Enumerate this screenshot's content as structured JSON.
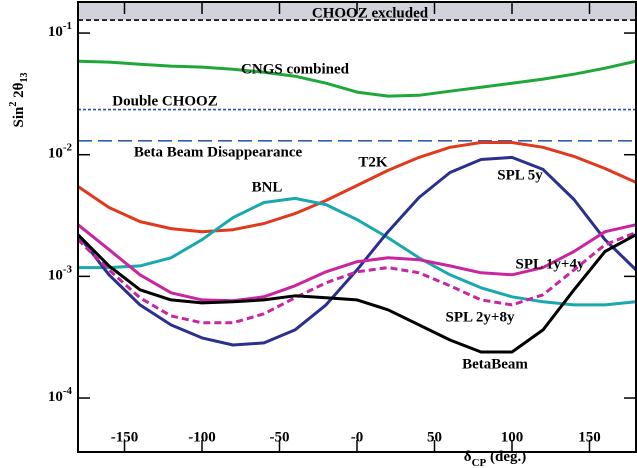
{
  "chart_data": {
    "type": "line",
    "ylabel": [
      "Sin",
      "2",
      " 2θ",
      "13"
    ],
    "xlabel": [
      "δ",
      "CP",
      " (deg.)"
    ],
    "log_y": true,
    "xlim": [
      -180,
      180
    ],
    "ylim": [
      3.6e-05,
      0.18
    ],
    "xticks": [
      -150,
      -100,
      -50,
      {
        "value": 0,
        "label": "-0"
      },
      50,
      100,
      150
    ],
    "yticks": [
      {
        "value": 0.0001,
        "label": "10",
        "exponent": "-4"
      },
      {
        "value": 0.001,
        "label": "10",
        "exponent": "-3"
      },
      {
        "value": 0.01,
        "label": "10",
        "exponent": "-2"
      },
      {
        "value": 0.1,
        "label": "10",
        "exponent": "-1"
      }
    ],
    "x": [
      -180,
      -160,
      -140,
      -120,
      -100,
      -80,
      -60,
      -40,
      -20,
      0,
      20,
      40,
      60,
      80,
      100,
      120,
      140,
      160,
      180
    ],
    "reference_lines": [
      {
        "name": "CHOOZ excluded",
        "value": 0.128,
        "color": "#000000",
        "dash": "5,3",
        "shade_above": true
      },
      {
        "name": "Double CHOOZ",
        "value": 0.0235,
        "color": "#2f4fb0",
        "dash": "3,2"
      },
      {
        "name": "Beta Beam Disappearance",
        "value": 0.013,
        "color": "#2f5fb0",
        "dash": "14,6"
      }
    ],
    "series": [
      {
        "name": "CNGS combined",
        "color": "#1fa83a",
        "dash": "none",
        "values": [
          0.0587,
          0.0577,
          0.0555,
          0.0535,
          0.0525,
          0.0505,
          0.0477,
          0.0442,
          0.0387,
          0.0327,
          0.0303,
          0.0308,
          0.0333,
          0.0359,
          0.0387,
          0.0418,
          0.0459,
          0.0514,
          0.0587
        ]
      },
      {
        "name": "T2K",
        "color": "#e0391c",
        "dash": "none",
        "values": [
          0.00548,
          0.00368,
          0.00282,
          0.00247,
          0.00233,
          0.00242,
          0.00272,
          0.00328,
          0.0042,
          0.00558,
          0.00743,
          0.00951,
          0.0115,
          0.0126,
          0.0126,
          0.0115,
          0.00968,
          0.00771,
          0.00592
        ]
      },
      {
        "name": "BNL",
        "color": "#1aa8b0",
        "dash": "none",
        "values": [
          0.00118,
          0.00118,
          0.00122,
          0.00142,
          0.002,
          0.00304,
          0.00405,
          0.00437,
          0.00389,
          0.00293,
          0.00208,
          0.00142,
          0.00103,
          0.000805,
          0.000679,
          0.000618,
          0.000583,
          0.000583,
          0.000618
        ]
      },
      {
        "name": "SPL 5y",
        "color": "#2b2f8f",
        "dash": "none",
        "values": [
          0.0022,
          0.00103,
          0.000583,
          0.000399,
          0.000312,
          0.000273,
          0.000284,
          0.000363,
          0.000583,
          0.00113,
          0.00233,
          0.00445,
          0.00714,
          0.00914,
          0.00951,
          0.00757,
          0.00428,
          0.002,
          0.00113
        ]
      },
      {
        "name": "SPL 1y+4y",
        "color": "#c8259f",
        "dash": "none",
        "values": [
          0.00266,
          0.00166,
          0.00103,
          0.000733,
          0.000641,
          0.00063,
          0.000679,
          0.000837,
          0.00109,
          0.00132,
          0.00142,
          0.00137,
          0.00122,
          0.00107,
          0.00103,
          0.00118,
          0.0016,
          0.00233,
          0.00266
        ]
      },
      {
        "name": "SPL 2y+8y",
        "color": "#c8259f",
        "dash": "7,4",
        "values": [
          0.002,
          0.00113,
          0.000667,
          0.000473,
          0.000415,
          0.000415,
          0.000492,
          0.000667,
          0.000885,
          0.00109,
          0.00118,
          0.00107,
          0.000837,
          0.000641,
          0.000583,
          0.000705,
          0.00113,
          0.00182,
          0.00229
        ]
      },
      {
        "name": "BetaBeam",
        "color": "#000000",
        "dash": "none",
        "values": [
          0.0022,
          0.00122,
          0.000776,
          0.000641,
          0.000605,
          0.000618,
          0.000641,
          0.000692,
          0.000667,
          0.000641,
          0.000531,
          0.000399,
          0.0003,
          0.000239,
          0.000239,
          0.000363,
          0.000776,
          0.0016,
          0.0022
        ]
      }
    ]
  }
}
